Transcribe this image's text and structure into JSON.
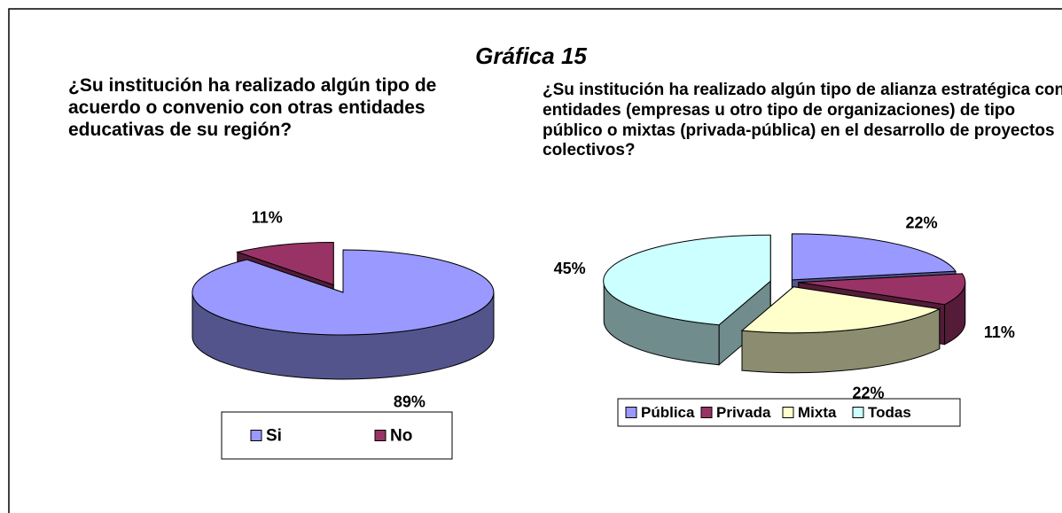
{
  "title": "Gráfica 15",
  "chart_data": [
    {
      "type": "pie",
      "title": "¿Su institución ha realizado algún tipo de acuerdo o convenio con otras entidades educativas de su región?",
      "categories": [
        "Si",
        "No"
      ],
      "values": [
        89,
        11
      ],
      "value_labels": [
        "89%",
        "11%"
      ],
      "colors": [
        "#9999ff",
        "#993366"
      ],
      "legend": "bottom"
    },
    {
      "type": "pie",
      "title": "¿Su institución ha realizado algún tipo de alianza estratégica con entidades (empresas u otro tipo de organizaciones) de tipo público o mixtas (privada-pública) en el desarrollo de proyectos colectivos?",
      "categories": [
        "Pública",
        "Privada",
        "Mixta",
        "Todas"
      ],
      "values": [
        22,
        11,
        22,
        45
      ],
      "value_labels": [
        "22%",
        "11%",
        "22%",
        "45%"
      ],
      "colors": [
        "#9999ff",
        "#993366",
        "#ffffcc",
        "#ccffff"
      ],
      "legend": "bottom"
    }
  ]
}
